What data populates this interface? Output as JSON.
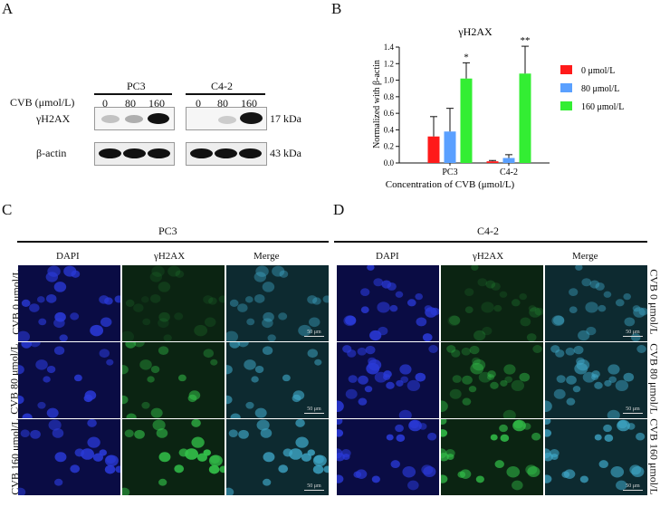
{
  "panels": {
    "a": "A",
    "b": "B",
    "c": "C",
    "d": "D"
  },
  "blot": {
    "group1": "PC3",
    "group2": "C4-2",
    "cvb_label": "CVB (μmol/L)",
    "doses": [
      "0",
      "80",
      "160"
    ],
    "rows": [
      "γH2AX",
      "β-actin"
    ],
    "sizes": [
      "17 kDa",
      "43 kDa"
    ]
  },
  "chart_data": {
    "type": "bar",
    "title": "γH2AX",
    "categories": [
      "PC3",
      "C4-2"
    ],
    "series": [
      {
        "name": "0 μmol/L",
        "color": "#ff1a1a",
        "values": [
          0.32,
          0.02
        ],
        "errors": [
          0.24,
          0.01
        ]
      },
      {
        "name": "80 μmol/L",
        "color": "#5aa0ff",
        "values": [
          0.38,
          0.06
        ],
        "errors": [
          0.28,
          0.04
        ]
      },
      {
        "name": "160 μmol/L",
        "color": "#33ee33",
        "values": [
          1.02,
          1.08
        ],
        "errors": [
          0.19,
          0.33
        ]
      }
    ],
    "significance": [
      {
        "category": "PC3",
        "series": "160 μmol/L",
        "mark": "*"
      },
      {
        "category": "C4-2",
        "series": "160 μmol/L",
        "mark": "**"
      }
    ],
    "xlabel": "Concentration of CVB  (μmol/L)",
    "ylabel": "Normalized with β-actin",
    "ylim": [
      0,
      1.4
    ],
    "yticks": [
      "0.0",
      "0.2",
      "0.4",
      "0.6",
      "0.8",
      "1.0",
      "1.2",
      "1.4"
    ],
    "legend_position": "right"
  },
  "micro": {
    "left_title": "PC3",
    "right_title": "C4-2",
    "col_labels": [
      "DAPI",
      "γH2AX",
      "Merge"
    ],
    "rows": [
      "CVB 0 μmol/L",
      "CVB 80 μmol/L",
      "CVB 160 μmol/L"
    ],
    "scale_label": "50 μm"
  }
}
